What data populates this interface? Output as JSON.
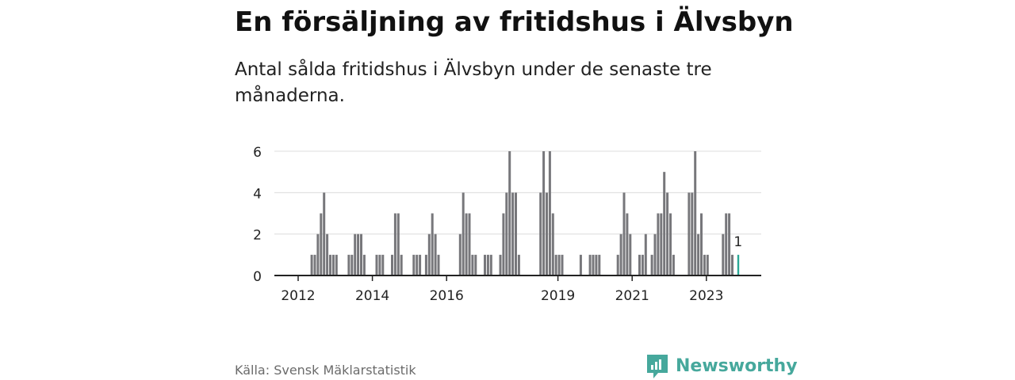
{
  "header": {
    "title": "En försäljning av fritidshus i Älvsbyn",
    "subtitle": "Antal sålda fritidshus i Älvsbyn under de senaste tre månaderna."
  },
  "footer": {
    "source": "Källa: Svensk Mäklarstatistik",
    "brand": "Newsworthy"
  },
  "colors": {
    "bar": "#77777b",
    "highlight": "#2aa896",
    "grid": "#dcdcdc",
    "axis": "#222222",
    "brand": "#46a89c"
  },
  "chart_data": {
    "type": "bar",
    "title": "En försäljning av fritidshus i Älvsbyn",
    "subtitle": "Antal sålda fritidshus i Älvsbyn under de senaste tre månaderna.",
    "xlabel": "",
    "ylabel": "",
    "x_range": [
      "2012-01",
      "2024-12"
    ],
    "ylim": [
      0,
      6
    ],
    "y_ticks": [
      0,
      2,
      4,
      6
    ],
    "x_ticks": [
      {
        "label": "2012",
        "at": "2012-01"
      },
      {
        "label": "2014",
        "at": "2014-01"
      },
      {
        "label": "2016",
        "at": "2016-01"
      },
      {
        "label": "2019",
        "at": "2019-01"
      },
      {
        "label": "2021",
        "at": "2021-01"
      },
      {
        "label": "2023",
        "at": "2023-01"
      }
    ],
    "grid": true,
    "highlight_label": "1",
    "points": [
      {
        "month": "2012-05",
        "value": 1
      },
      {
        "month": "2012-06",
        "value": 1
      },
      {
        "month": "2012-07",
        "value": 2
      },
      {
        "month": "2012-08",
        "value": 3
      },
      {
        "month": "2012-09",
        "value": 4
      },
      {
        "month": "2012-10",
        "value": 2
      },
      {
        "month": "2012-11",
        "value": 1
      },
      {
        "month": "2012-12",
        "value": 1
      },
      {
        "month": "2013-01",
        "value": 1
      },
      {
        "month": "2013-05",
        "value": 1
      },
      {
        "month": "2013-06",
        "value": 1
      },
      {
        "month": "2013-07",
        "value": 2
      },
      {
        "month": "2013-08",
        "value": 2
      },
      {
        "month": "2013-09",
        "value": 2
      },
      {
        "month": "2013-10",
        "value": 1
      },
      {
        "month": "2014-02",
        "value": 1
      },
      {
        "month": "2014-03",
        "value": 1
      },
      {
        "month": "2014-04",
        "value": 1
      },
      {
        "month": "2014-07",
        "value": 1
      },
      {
        "month": "2014-08",
        "value": 3
      },
      {
        "month": "2014-09",
        "value": 3
      },
      {
        "month": "2014-10",
        "value": 1
      },
      {
        "month": "2015-02",
        "value": 1
      },
      {
        "month": "2015-03",
        "value": 1
      },
      {
        "month": "2015-04",
        "value": 1
      },
      {
        "month": "2015-06",
        "value": 1
      },
      {
        "month": "2015-07",
        "value": 2
      },
      {
        "month": "2015-08",
        "value": 3
      },
      {
        "month": "2015-09",
        "value": 2
      },
      {
        "month": "2015-10",
        "value": 1
      },
      {
        "month": "2016-05",
        "value": 2
      },
      {
        "month": "2016-06",
        "value": 4
      },
      {
        "month": "2016-07",
        "value": 3
      },
      {
        "month": "2016-08",
        "value": 3
      },
      {
        "month": "2016-09",
        "value": 1
      },
      {
        "month": "2016-10",
        "value": 1
      },
      {
        "month": "2017-01",
        "value": 1
      },
      {
        "month": "2017-02",
        "value": 1
      },
      {
        "month": "2017-03",
        "value": 1
      },
      {
        "month": "2017-06",
        "value": 1
      },
      {
        "month": "2017-07",
        "value": 3
      },
      {
        "month": "2017-08",
        "value": 4
      },
      {
        "month": "2017-09",
        "value": 6
      },
      {
        "month": "2017-10",
        "value": 4
      },
      {
        "month": "2017-11",
        "value": 4
      },
      {
        "month": "2017-12",
        "value": 1
      },
      {
        "month": "2018-07",
        "value": 4
      },
      {
        "month": "2018-08",
        "value": 6
      },
      {
        "month": "2018-09",
        "value": 4
      },
      {
        "month": "2018-10",
        "value": 6
      },
      {
        "month": "2018-11",
        "value": 3
      },
      {
        "month": "2018-12",
        "value": 1
      },
      {
        "month": "2019-01",
        "value": 1
      },
      {
        "month": "2019-02",
        "value": 1
      },
      {
        "month": "2019-08",
        "value": 1
      },
      {
        "month": "2019-11",
        "value": 1
      },
      {
        "month": "2019-12",
        "value": 1
      },
      {
        "month": "2020-01",
        "value": 1
      },
      {
        "month": "2020-02",
        "value": 1
      },
      {
        "month": "2020-08",
        "value": 1
      },
      {
        "month": "2020-09",
        "value": 2
      },
      {
        "month": "2020-10",
        "value": 4
      },
      {
        "month": "2020-11",
        "value": 3
      },
      {
        "month": "2020-12",
        "value": 2
      },
      {
        "month": "2021-03",
        "value": 1
      },
      {
        "month": "2021-04",
        "value": 1
      },
      {
        "month": "2021-05",
        "value": 2
      },
      {
        "month": "2021-07",
        "value": 1
      },
      {
        "month": "2021-08",
        "value": 2
      },
      {
        "month": "2021-09",
        "value": 3
      },
      {
        "month": "2021-10",
        "value": 3
      },
      {
        "month": "2021-11",
        "value": 5
      },
      {
        "month": "2021-12",
        "value": 4
      },
      {
        "month": "2022-01",
        "value": 3
      },
      {
        "month": "2022-02",
        "value": 1
      },
      {
        "month": "2022-07",
        "value": 4
      },
      {
        "month": "2022-08",
        "value": 4
      },
      {
        "month": "2022-09",
        "value": 6
      },
      {
        "month": "2022-10",
        "value": 2
      },
      {
        "month": "2022-11",
        "value": 3
      },
      {
        "month": "2022-12",
        "value": 1
      },
      {
        "month": "2023-01",
        "value": 1
      },
      {
        "month": "2023-06",
        "value": 2
      },
      {
        "month": "2023-07",
        "value": 3
      },
      {
        "month": "2023-08",
        "value": 3
      },
      {
        "month": "2023-09",
        "value": 1
      },
      {
        "month": "2023-11",
        "value": 1,
        "highlight": true
      }
    ]
  }
}
